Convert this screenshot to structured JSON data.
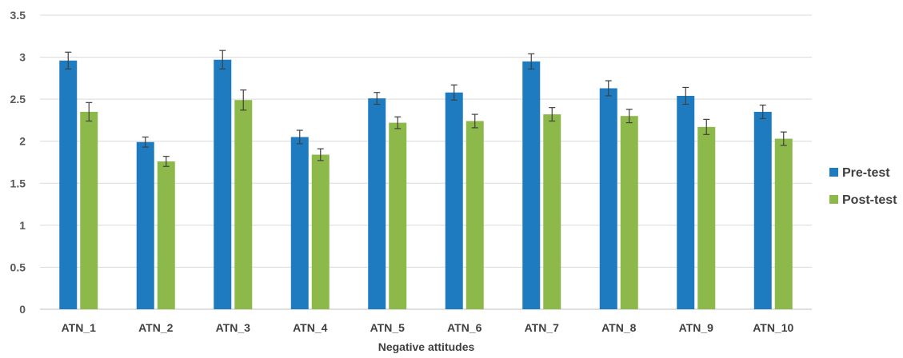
{
  "chart_data": {
    "type": "bar",
    "title": "",
    "xlabel": "Negative attitudes",
    "ylabel": "",
    "ylim": [
      0,
      3.5
    ],
    "yticks": [
      "0",
      "0.5",
      "1",
      "1.5",
      "2",
      "2.5",
      "3",
      "3.5"
    ],
    "grid": true,
    "legend_position": "right",
    "categories": [
      "ATN_1",
      "ATN_2",
      "ATN_3",
      "ATN_4",
      "ATN_5",
      "ATN_6",
      "ATN_7",
      "ATN_8",
      "ATN_9",
      "ATN_10"
    ],
    "series": [
      {
        "name": "Pre-test",
        "color": "#1f7bbf",
        "values": [
          2.96,
          1.99,
          2.97,
          2.05,
          2.51,
          2.58,
          2.95,
          2.63,
          2.54,
          2.35
        ],
        "error": [
          0.1,
          0.06,
          0.11,
          0.08,
          0.07,
          0.09,
          0.09,
          0.09,
          0.1,
          0.08
        ]
      },
      {
        "name": "Post-test",
        "color": "#8db94a",
        "values": [
          2.35,
          1.76,
          2.49,
          1.84,
          2.22,
          2.24,
          2.32,
          2.3,
          2.17,
          2.03
        ],
        "error": [
          0.11,
          0.06,
          0.12,
          0.07,
          0.07,
          0.08,
          0.08,
          0.08,
          0.09,
          0.08
        ]
      }
    ]
  }
}
